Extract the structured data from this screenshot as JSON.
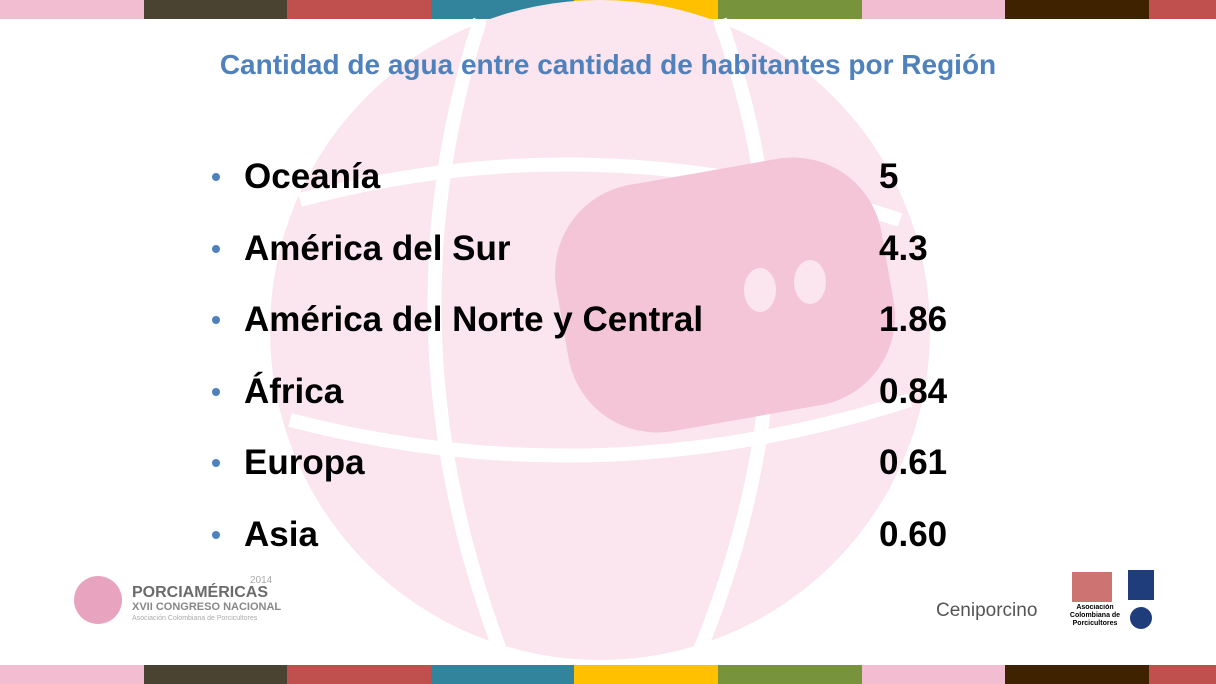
{
  "title": "Cantidad de agua entre cantidad de habitantes por Región",
  "items": [
    {
      "region": "Oceanía",
      "value": "5"
    },
    {
      "region": "América del Sur",
      "value": "4.3"
    },
    {
      "region": "América del Norte y Central",
      "value": "1.86"
    },
    {
      "region": "África",
      "value": "0.84"
    },
    {
      "region": "Europa",
      "value": "0.61"
    },
    {
      "region": "Asia",
      "value": "0.60"
    }
  ],
  "logos": {
    "porciamericas": {
      "year": "2014",
      "name": "PORCIAMÉRICAS",
      "event": "XVII CONGRESO NACIONAL",
      "org": "Asociación Colombiana de Porcicultores"
    },
    "ceniporcino": {
      "name": "Ceniporcino"
    },
    "asociacion": {
      "name": "Asociación Colombiana de Porcicultores"
    }
  }
}
